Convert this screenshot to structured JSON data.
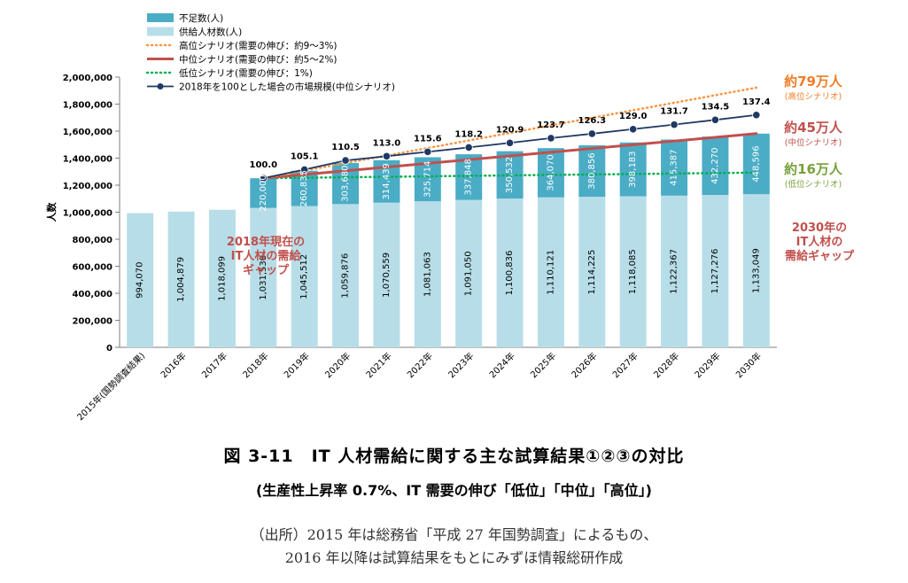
{
  "figure": {
    "title": "図 3-11　IT 人材需給に関する主な試算結果①②③の対比",
    "subtitle": "(生産性上昇率 0.7%、IT 需要の伸び「低位」「中位」「高位」)",
    "source_line1": "（出所）2015 年は総務省「平成 27 年国勢調査」によるもの、",
    "source_line2": "2016 年以降は試算結果をもとにみずほ情報総研作成"
  },
  "colors": {
    "shortage": "#4BACC6",
    "supply": "#B7DEE8",
    "high": "#F79646",
    "mid": "#C0504D",
    "low": "#00B050",
    "market": "#1F3864",
    "accent_label": "#C0504D",
    "low_label": "#77A03B",
    "high_label": "#F07C26"
  },
  "chart_data": {
    "type": "bar",
    "ylabel": "人数",
    "ylim": [
      0,
      2000000
    ],
    "yticks": [
      "0",
      "200,000",
      "400,000",
      "600,000",
      "800,000",
      "1,000,000",
      "1,200,000",
      "1,400,000",
      "1,600,000",
      "1,800,000",
      "2,000,000"
    ],
    "categories": [
      "2015年(国勢調査結果)",
      "2016年",
      "2017年",
      "2018年",
      "2019年",
      "2020年",
      "2021年",
      "2022年",
      "2023年",
      "2024年",
      "2025年",
      "2026年",
      "2027年",
      "2028年",
      "2029年",
      "2030年"
    ],
    "supply": {
      "name": "供給人材数(人)",
      "values": [
        994070,
        1004879,
        1018099,
        1031538,
        1045512,
        1059876,
        1070559,
        1081063,
        1091050,
        1100836,
        1110121,
        1114225,
        1118085,
        1122367,
        1127276,
        1133049
      ],
      "labels": [
        "994,070",
        "1,004,879",
        "1,018,099",
        "1,031,538",
        "1,045,512",
        "1,059,876",
        "1,070,559",
        "1,081,063",
        "1,091,050",
        "1,100,836",
        "1,110,121",
        "1,114,225",
        "1,118,085",
        "1,122,367",
        "1,127,276",
        "1,133,049"
      ]
    },
    "shortage": {
      "name": "不足数(人)",
      "values": [
        null,
        null,
        null,
        220000,
        260835,
        303680,
        314439,
        325714,
        337848,
        350532,
        364070,
        380856,
        398183,
        415387,
        432270,
        448596
      ],
      "labels": [
        "",
        "",
        "",
        "220,000",
        "260,835",
        "303,680",
        "314,439",
        "325,714",
        "337,848",
        "350,532",
        "364,070",
        "380,856",
        "398,183",
        "415,387",
        "432,270",
        "448,596"
      ]
    },
    "high": {
      "name": "高位シナリオ(需要の伸び：約9〜3%)",
      "start": [
        3,
        1251538
      ],
      "end": [
        15,
        1921645
      ]
    },
    "mid": {
      "name": "中位シナリオ(需要の伸び：約5〜2%)",
      "start": [
        3,
        1251538
      ],
      "end": [
        15,
        1581645
      ]
    },
    "low": {
      "name": "低位シナリオ(需要の伸び：1%)",
      "start": [
        3,
        1251538
      ],
      "end": [
        15,
        1293049
      ]
    },
    "market": {
      "name": "2018年を100とした場合の市場規模(中位シナリオ)",
      "x_start": 3,
      "values": [
        100.0,
        105.1,
        110.5,
        113.0,
        115.6,
        118.2,
        120.9,
        123.7,
        126.3,
        129.0,
        131.7,
        134.5,
        137.4
      ],
      "labels": [
        "100.0",
        "105.1",
        "110.5",
        "113.0",
        "115.6",
        "118.2",
        "120.9",
        "123.7",
        "126.3",
        "129.0",
        "131.7",
        "134.5",
        "137.4"
      ]
    },
    "annotations": {
      "gap_2018": [
        "2018年現在の",
        "IT人材の需給",
        "ギャップ"
      ],
      "gap_2030": [
        "2030年の",
        "IT人材の",
        "需給ギャップ"
      ],
      "high_big": "約79万人",
      "high_small": "(高位シナリオ)",
      "mid_big": "約45万人",
      "mid_small": "(中位シナリオ)",
      "low_big": "約16万人",
      "low_small": "(低位シナリオ)"
    }
  }
}
